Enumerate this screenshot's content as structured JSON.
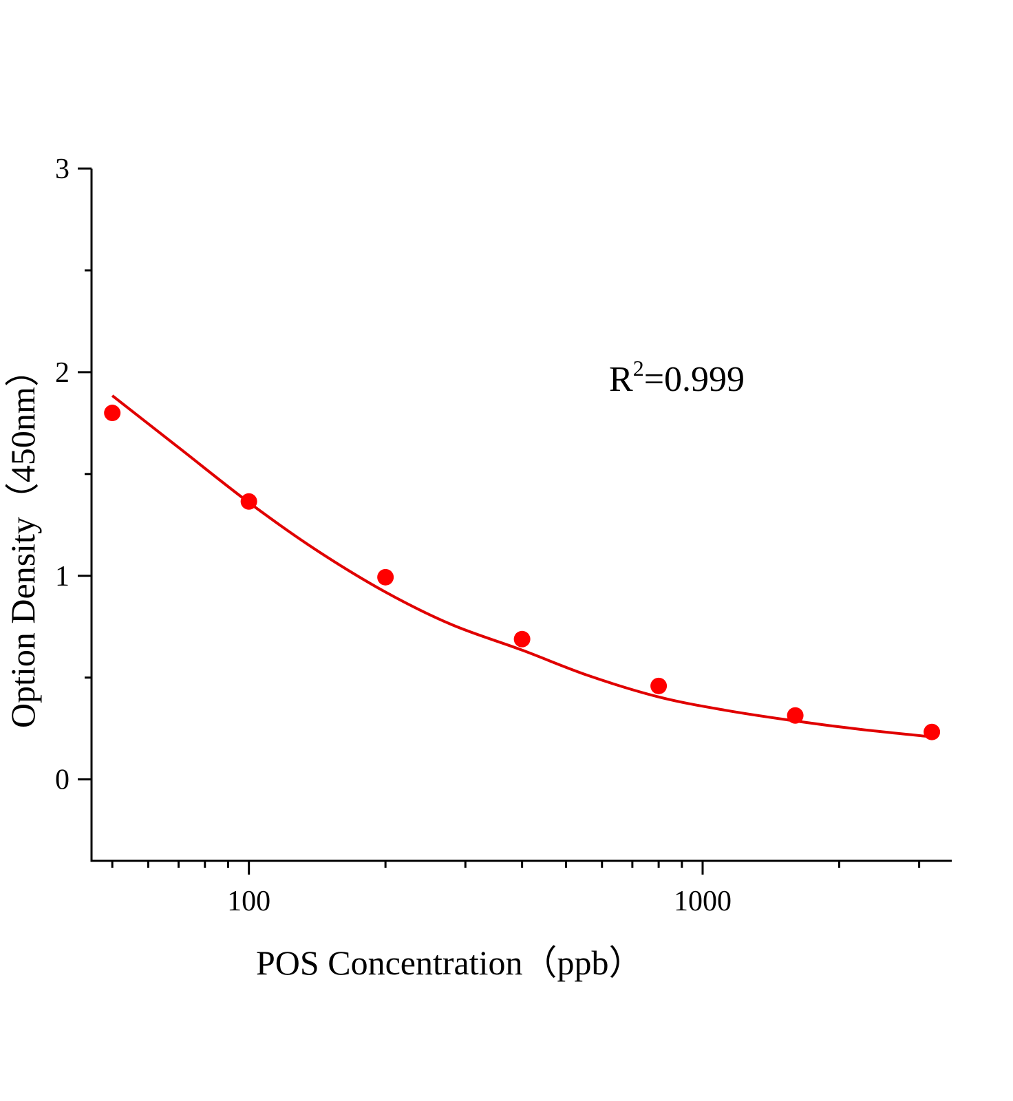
{
  "chart_data": {
    "type": "scatter",
    "title": "",
    "xlabel": "POS Concentration（ppb）",
    "ylabel": "Option Density（450nm）",
    "xscale": "log",
    "xlim": [
      45,
      3540
    ],
    "ylim": [
      -0.4,
      3
    ],
    "x_ticks": [
      100,
      1000
    ],
    "x_tick_labels": [
      "100",
      "1000"
    ],
    "x_minor_ticks": [
      50,
      60,
      70,
      80,
      90,
      200,
      300,
      400,
      500,
      600,
      700,
      800,
      900,
      2000,
      3000
    ],
    "y_ticks": [
      0,
      1,
      2,
      3
    ],
    "y_tick_labels": [
      "0",
      "1",
      "2",
      "3"
    ],
    "y_minor_ticks": [
      -0.5,
      0.5,
      1.5,
      2.5
    ],
    "grid": false,
    "annotation": {
      "prefix": "R",
      "sup": "2",
      "suffix": "=0.999"
    },
    "marker_color": "#ff0000",
    "curve_color": "#e00000",
    "points": {
      "x": [
        50,
        100,
        200,
        400,
        800,
        1600,
        3200
      ],
      "y": [
        1.8,
        1.365,
        0.993,
        0.689,
        0.459,
        0.314,
        0.233
      ]
    },
    "fit_curve": {
      "x": [
        50,
        70,
        100,
        140,
        200,
        280,
        400,
        560,
        800,
        1120,
        1600,
        2240,
        3200
      ],
      "y": [
        1.885,
        1.63,
        1.36,
        1.13,
        0.92,
        0.76,
        0.635,
        0.51,
        0.405,
        0.34,
        0.287,
        0.245,
        0.209
      ]
    }
  }
}
